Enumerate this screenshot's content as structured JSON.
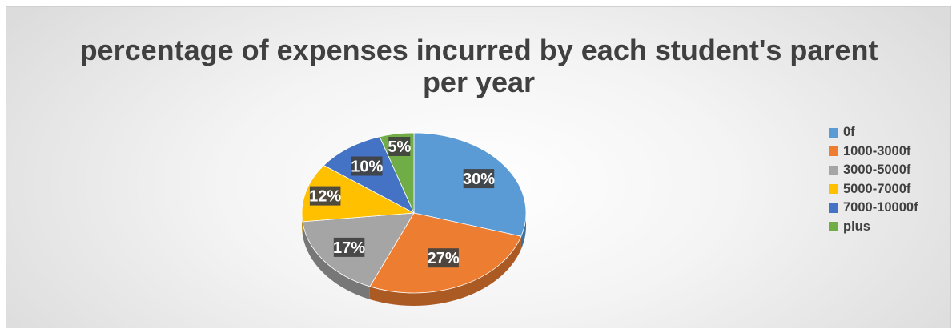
{
  "chart_data": {
    "type": "pie",
    "title": "percentage of expenses incurred by each student's parent per year",
    "categories": [
      "0f",
      "1000-3000f",
      "3000-5000f",
      "5000-7000f",
      "7000-10000f",
      "plus"
    ],
    "values": [
      30,
      27,
      17,
      12,
      10,
      5
    ],
    "labels": [
      "30%",
      "27%",
      "17%",
      "12%",
      "10%",
      "5%"
    ],
    "colors": [
      "#5B9BD5",
      "#ED7D31",
      "#A5A5A5",
      "#FFC000",
      "#4472C4",
      "#70AD47"
    ],
    "legend_position": "right"
  }
}
